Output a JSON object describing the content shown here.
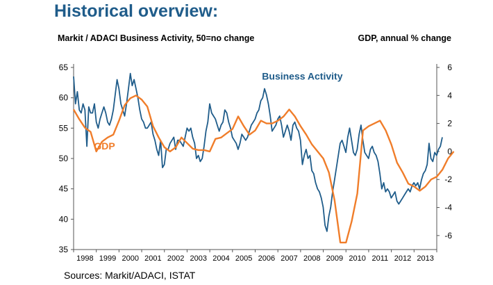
{
  "page": {
    "title": "Historical overview:",
    "left_axis_title": "Markit / ADACI  Business Activity, 50=no change",
    "right_axis_title": "GDP, annual % change",
    "source": "Sources: Markit/ADACI, ISTAT"
  },
  "colors": {
    "business_activity": "#1F5C8A",
    "gdp": "#F07D2A",
    "axis": "#555555",
    "title": "#1F5C8A"
  },
  "chart_data": {
    "type": "line",
    "x_start_year": 1998,
    "x_range": [
      1998.0,
      2014.0
    ],
    "x_tick_labels": [
      "1998",
      "1999",
      "2000",
      "2001",
      "2002",
      "2003",
      "2004",
      "2005",
      "2006",
      "2007",
      "2008",
      "2009",
      "2010",
      "2011",
      "2012",
      "2013"
    ],
    "left_axis": {
      "range": [
        35,
        65
      ],
      "ticks": [
        35,
        40,
        45,
        50,
        55,
        60,
        65
      ]
    },
    "right_axis": {
      "range": [
        -7,
        6
      ],
      "ticks": [
        -6,
        -4,
        -2,
        0,
        2,
        4,
        6
      ]
    },
    "annotations": [
      {
        "text": "Business Activity",
        "series": "business_activity",
        "x": 2006.3,
        "y": 63.0
      },
      {
        "text": "GDP",
        "series": "gdp",
        "x": 1998.9,
        "y": 51.5
      }
    ],
    "series": [
      {
        "key": "business_activity",
        "axis": "left",
        "step": 0.0833,
        "values": [
          63.5,
          59.0,
          61.0,
          58.0,
          57.5,
          59.0,
          58.0,
          52.0,
          58.5,
          57.5,
          57.5,
          59.0,
          56.0,
          55.0,
          56.5,
          57.5,
          58.5,
          57.5,
          56.0,
          55.5,
          56.5,
          58.0,
          60.5,
          63.0,
          61.5,
          59.0,
          58.0,
          57.0,
          59.0,
          61.5,
          64.0,
          62.0,
          63.0,
          61.5,
          60.0,
          58.0,
          56.5,
          56.0,
          55.0,
          55.0,
          55.5,
          56.0,
          54.0,
          53.0,
          51.5,
          50.5,
          53.0,
          48.5,
          49.0,
          51.5,
          51.5,
          52.5,
          53.0,
          53.5,
          51.5,
          53.0,
          53.0,
          52.5,
          52.0,
          53.5,
          55.0,
          54.5,
          55.0,
          53.5,
          52.5,
          50.0,
          50.5,
          49.5,
          50.0,
          52.0,
          54.5,
          56.0,
          59.0,
          57.5,
          57.0,
          56.5,
          55.5,
          54.5,
          55.5,
          56.0,
          58.0,
          57.5,
          56.0,
          55.0,
          53.5,
          53.0,
          52.5,
          51.5,
          52.5,
          54.0,
          53.5,
          53.0,
          53.5,
          54.5,
          55.5,
          56.0,
          56.5,
          57.5,
          58.0,
          59.5,
          60.0,
          61.5,
          60.5,
          59.0,
          57.0,
          54.5,
          55.0,
          55.5,
          56.5,
          57.0,
          55.5,
          53.5,
          54.5,
          55.5,
          54.5,
          53.0,
          55.5,
          56.0,
          55.0,
          54.5,
          53.0,
          49.0,
          50.5,
          51.5,
          50.0,
          50.5,
          48.0,
          47.5,
          46.0,
          45.0,
          44.5,
          43.5,
          42.0,
          39.0,
          38.0,
          40.5,
          42.0,
          44.5,
          46.5,
          48.5,
          50.5,
          52.5,
          53.0,
          52.0,
          51.0,
          53.5,
          55.0,
          53.0,
          51.0,
          50.5,
          51.5,
          54.0,
          55.5,
          53.0,
          51.0,
          50.5,
          50.0,
          51.5,
          52.0,
          51.0,
          50.5,
          49.5,
          47.5,
          45.0,
          46.0,
          44.5,
          45.0,
          44.5,
          43.5,
          44.0,
          44.5,
          43.0,
          42.5,
          43.0,
          43.5,
          44.0,
          44.5,
          45.0,
          44.5,
          45.5,
          46.0,
          45.5,
          46.0,
          45.0,
          46.5,
          47.5,
          48.0,
          49.0,
          52.5,
          50.0,
          49.5,
          51.0,
          50.5,
          51.5,
          52.0,
          53.5
        ]
      },
      {
        "key": "gdp",
        "axis": "right",
        "step": 0.25,
        "values": [
          3.0,
          2.3,
          1.7,
          1.4,
          0.0,
          0.7,
          1.0,
          1.2,
          2.2,
          3.3,
          3.8,
          4.0,
          3.7,
          3.2,
          1.8,
          1.0,
          0.3,
          0.0,
          0.3,
          1.0,
          0.6,
          0.2,
          0.1,
          0.1,
          0.0,
          0.9,
          1.0,
          1.3,
          1.6,
          2.5,
          1.8,
          1.2,
          1.5,
          2.2,
          2.0,
          2.0,
          2.2,
          2.5,
          3.0,
          2.5,
          1.8,
          1.2,
          0.5,
          0.0,
          -0.5,
          -1.5,
          -3.5,
          -6.5,
          -6.5,
          -5.0,
          -3.0,
          1.5,
          1.8,
          2.0,
          2.2,
          1.5,
          0.5,
          -0.8,
          -1.5,
          -2.3,
          -2.5,
          -2.8,
          -2.5,
          -2.0,
          -1.8,
          -1.3,
          -0.5,
          0.0
        ]
      }
    ]
  }
}
